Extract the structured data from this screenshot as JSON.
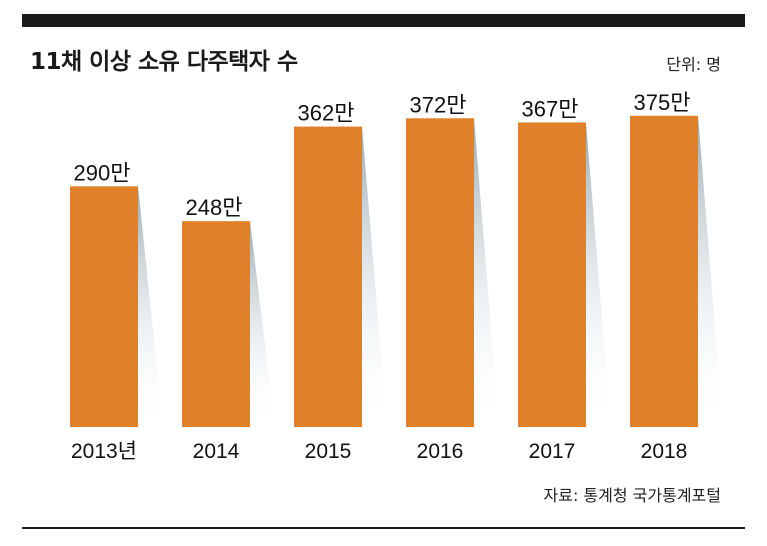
{
  "header": {
    "title": "11채 이상 소유 다주택자 수",
    "unit": "단위: 명"
  },
  "footer": {
    "source": "자료: 통계청 국가통계포털"
  },
  "colors": {
    "bar": "#e0802a",
    "bar_shadow": "#9aa2aa",
    "rule": "#1a1a1a"
  },
  "chart_data": {
    "type": "bar",
    "title": "11채 이상 소유 다주택자 수",
    "ylabel": "단위: 명",
    "categories": [
      "2013년",
      "2014",
      "2015",
      "2016",
      "2017",
      "2018"
    ],
    "values": [
      290,
      248,
      362,
      372,
      367,
      375
    ],
    "value_labels": [
      "290만",
      "248만",
      "362만",
      "372만",
      "367만",
      "375만"
    ],
    "ylim": [
      0,
      394
    ],
    "grid": false,
    "legend": "none"
  }
}
